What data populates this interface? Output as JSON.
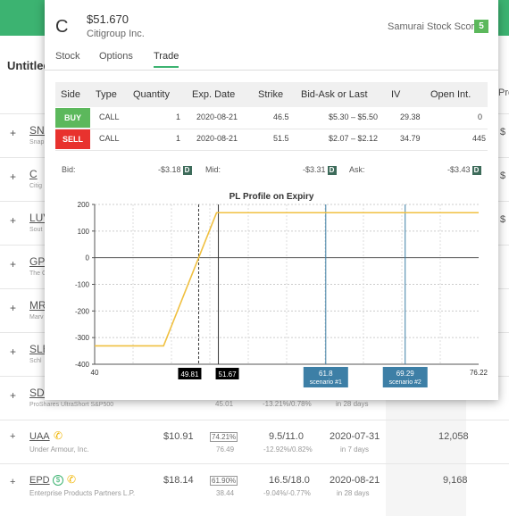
{
  "background": {
    "title": "Untitled",
    "pro_header": "Pro",
    "rows": [
      {
        "symbol": "SNAP",
        "sub": "Snap",
        "right": "$"
      },
      {
        "symbol": "C",
        "sub": "Citig",
        "right": "$"
      },
      {
        "symbol": "LUV",
        "sub": "Sout",
        "right": "$"
      },
      {
        "symbol": "GPS",
        "sub": "The G",
        "right": ""
      },
      {
        "symbol": "MRVL",
        "sub": "Marv",
        "right": ""
      },
      {
        "symbol": "SLB",
        "sub": "Schl",
        "right": ""
      },
      {
        "symbol": "SDS",
        "sub": "ProShares UltraShort S&P500",
        "right": ""
      }
    ],
    "sds_row": {
      "iv_sub": "45.01",
      "chg": "-13.21%/0.78%",
      "days": "in 28 days"
    },
    "uaa": {
      "symbol": "UAA",
      "name": "Under Armour, Inc.",
      "price": "$10.91",
      "iv": "74.21%",
      "iv_sub": "76.49",
      "bidask": "9.5/11.0",
      "chg": "-12.92%/0.82%",
      "date": "2020-07-31",
      "days": "in 7 days",
      "oi": "12,058"
    },
    "epd": {
      "symbol": "EPD",
      "name": "Enterprise Products Partners L.P.",
      "price": "$18.14",
      "iv": "61.90%",
      "iv_sub": "38.44",
      "bidask": "16.5/18.0",
      "chg": "-9.04%/-0.77%",
      "date": "2020-08-21",
      "days": "in 28 days",
      "oi": "9,168"
    }
  },
  "modal": {
    "logo": "C",
    "price": "$51.670",
    "company": "Citigroup Inc.",
    "score_label": "Samurai Stock Score",
    "score": "5",
    "tabs": [
      "Stock",
      "Options",
      "Trade"
    ],
    "active_tab": "Trade",
    "table": {
      "headers": [
        "Side",
        "Type",
        "Quantity",
        "Exp. Date",
        "Strike",
        "Bid-Ask or Last",
        "IV",
        "Open Int."
      ],
      "rows": [
        {
          "side": "BUY",
          "type": "CALL",
          "qty": "1",
          "date": "2020-08-21",
          "strike": "46.5",
          "bidask": "$5.30 – $5.50",
          "iv": "29.38",
          "oi": "0"
        },
        {
          "side": "SELL",
          "type": "CALL",
          "qty": "1",
          "date": "2020-08-21",
          "strike": "51.5",
          "bidask": "$2.07 – $2.12",
          "iv": "34.79",
          "oi": "445"
        }
      ]
    },
    "quote": {
      "bid_label": "Bid:",
      "bid": "-$3.18",
      "mid_label": "Mid:",
      "mid": "-$3.31",
      "ask_label": "Ask:",
      "ask": "-$3.43",
      "badge": "D"
    },
    "colors": {
      "green": "#5cb85c",
      "red": "#e8322e",
      "line": "#f0c040",
      "marker": "#3d7fa6",
      "brand": "#3cb371"
    }
  },
  "chart_data": {
    "type": "line",
    "title": "PL Profile on Expiry",
    "xlim": [
      40,
      76.22
    ],
    "ylim": [
      -400,
      200
    ],
    "yticks": [
      200,
      100,
      0,
      -100,
      -200,
      -300,
      -400
    ],
    "xtick_labels": [
      "40",
      "76.22"
    ],
    "series": [
      {
        "x": [
          40,
          46.5,
          51.5,
          76.22
        ],
        "y": [
          -331,
          -331,
          169,
          169
        ]
      }
    ],
    "markers": [
      {
        "x": 49.81,
        "label": "49.81",
        "style": "dashed",
        "flag": "black"
      },
      {
        "x": 51.67,
        "label": "51.67",
        "style": "solid",
        "flag": "black"
      },
      {
        "x": 61.8,
        "label": "61.8",
        "sublabel": "scenario #1",
        "style": "solid",
        "flag": "blue"
      },
      {
        "x": 69.29,
        "label": "69.29",
        "sublabel": "scenario #2",
        "style": "solid",
        "flag": "blue"
      }
    ]
  }
}
